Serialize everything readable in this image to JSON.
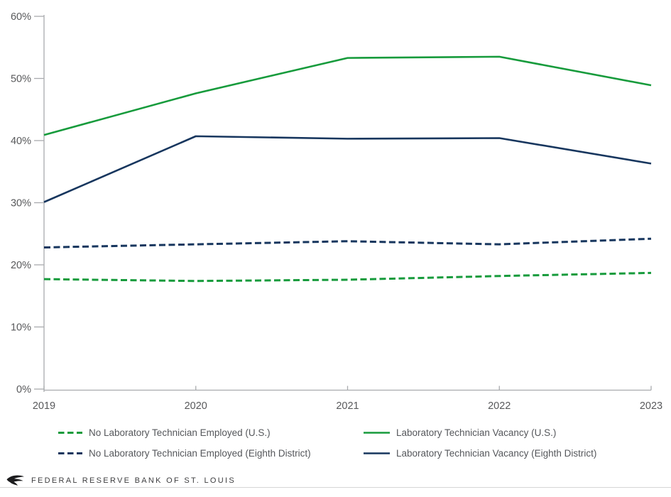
{
  "colors": {
    "green": "#179b3c",
    "navy": "#17365e",
    "axis": "#a9abae",
    "tick_text": "#58595b",
    "legend_text": "#55575b",
    "footer_text": "#3d3d3f",
    "footer_rule": "#d6d6d6"
  },
  "chart_data": {
    "type": "line",
    "x": [
      2019,
      2020,
      2021,
      2022,
      2023
    ],
    "x_tick_labels": [
      "2019",
      "2020",
      "2021",
      "2022",
      "2023"
    ],
    "y_tick_labels": [
      "0%",
      "10%",
      "20%",
      "30%",
      "40%",
      "50%",
      "60%"
    ],
    "ylim": [
      0,
      60
    ],
    "y_tick_step": 10,
    "grid": false,
    "legend_position": "bottom",
    "series": [
      {
        "name": "No Laboratory Technician Employed (U.S.)",
        "color_key": "green",
        "style": "dashed",
        "values": [
          17.7,
          17.4,
          17.6,
          18.2,
          18.7
        ]
      },
      {
        "name": "No Laboratory Technician Employed (Eighth District)",
        "color_key": "navy",
        "style": "dashed",
        "values": [
          22.8,
          23.3,
          23.8,
          23.3,
          24.2
        ]
      },
      {
        "name": "Laboratory Technician Vacancy (U.S.)",
        "color_key": "green",
        "style": "solid",
        "values": [
          40.9,
          47.6,
          53.3,
          53.5,
          48.9
        ]
      },
      {
        "name": "Laboratory Technician Vacancy (Eighth District)",
        "color_key": "navy",
        "style": "solid",
        "values": [
          30.1,
          40.7,
          40.3,
          40.4,
          36.3
        ]
      }
    ]
  },
  "legend": {
    "items": [
      {
        "label": "No Laboratory Technician Employed (U.S.)",
        "color_key": "green",
        "style": "dashed"
      },
      {
        "label": "Laboratory Technician Vacancy (U.S.)",
        "color_key": "green",
        "style": "solid"
      },
      {
        "label": "No Laboratory Technician Employed (Eighth District)",
        "color_key": "navy",
        "style": "dashed"
      },
      {
        "label": "Laboratory Technician Vacancy (Eighth District)",
        "color_key": "navy",
        "style": "solid"
      }
    ]
  },
  "footer": {
    "brand": "FEDERAL RESERVE BANK OF ST. LOUIS"
  }
}
